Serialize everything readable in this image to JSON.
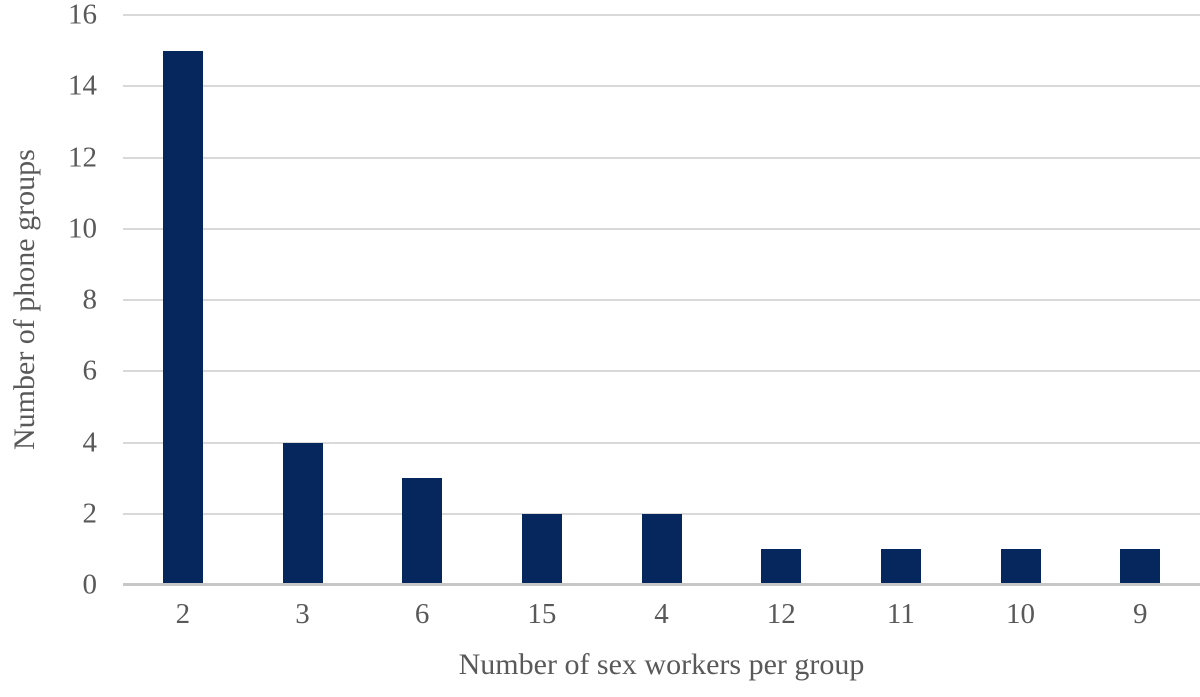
{
  "chart_data": {
    "type": "bar",
    "title": "",
    "categories": [
      "2",
      "3",
      "6",
      "15",
      "4",
      "12",
      "11",
      "10",
      "9"
    ],
    "values": [
      15,
      4,
      3,
      2,
      2,
      1,
      1,
      1,
      1
    ],
    "xlabel": "Number of sex workers per group",
    "ylabel": "Number of phone groups",
    "y_ticks": [
      0,
      2,
      4,
      6,
      8,
      10,
      12,
      14,
      16
    ],
    "ylim": [
      0,
      16
    ],
    "grid": true,
    "legend_position": "none",
    "colors": {
      "bar": "#06265e",
      "gridline": "#d9d9d9",
      "axis_line": "#c7c7c7",
      "text": "#595959",
      "background": "#ffffff"
    }
  }
}
